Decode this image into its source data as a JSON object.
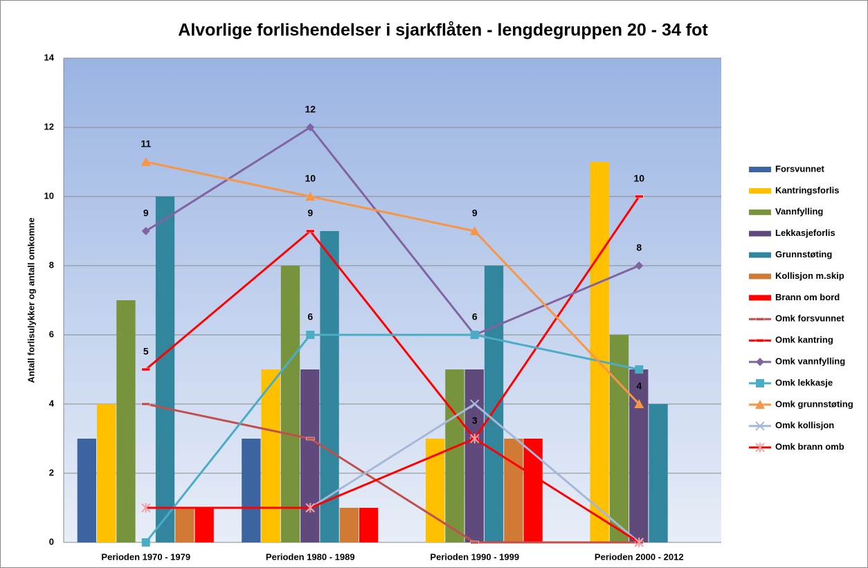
{
  "chart_data": {
    "type": "combo",
    "title": "Alvorlige forlishendelser i sjarkflåten - lengdegruppen 20 - 34 fot",
    "y_label": "Antall forlisulykker og antall omkomne",
    "categories": [
      "Perioden 1970 - 1979",
      "Perioden 1980 - 1989",
      "Perioden 1990 - 1999",
      "Perioden 2000 - 2012"
    ],
    "ylim": [
      0,
      14
    ],
    "yticks": [
      0,
      2,
      4,
      6,
      8,
      10,
      12,
      14
    ],
    "grid": true,
    "legend": "right",
    "series": [
      {
        "name": "Forsvunnet",
        "kind": "bar",
        "color": "#3b64a0",
        "values": [
          3,
          3,
          0,
          0
        ]
      },
      {
        "name": "Kantringsforlis",
        "kind": "bar",
        "color": "#ffc000",
        "values": [
          4,
          5,
          3,
          11
        ]
      },
      {
        "name": "Vannfylling",
        "kind": "bar",
        "color": "#77933c",
        "values": [
          7,
          8,
          5,
          6
        ]
      },
      {
        "name": "Lekkasjeforlis",
        "kind": "bar",
        "color": "#604a7b",
        "values": [
          0,
          5,
          5,
          5
        ]
      },
      {
        "name": "Grunnstøting",
        "kind": "bar",
        "color": "#31859c",
        "values": [
          10,
          9,
          8,
          4
        ]
      },
      {
        "name": "Kollisjon m.skip",
        "kind": "bar",
        "color": "#d07a35",
        "values": [
          1,
          1,
          3,
          0
        ]
      },
      {
        "name": "Brann om bord",
        "kind": "bar",
        "color": "#ff0000",
        "values": [
          1,
          1,
          3,
          0
        ]
      },
      {
        "name": "Omk forsvunnet",
        "kind": "line",
        "marker": "dash",
        "color": "#c0504d",
        "values": [
          4,
          3,
          0,
          0
        ]
      },
      {
        "name": "Omk kantring",
        "kind": "line",
        "marker": "dash",
        "color": "#ff0000",
        "values": [
          5,
          9,
          3,
          10
        ],
        "value_labels": [
          "5",
          "9",
          "3",
          "10"
        ]
      },
      {
        "name": "Omk vannfylling",
        "kind": "line",
        "marker": "diamond",
        "color": "#8064a2",
        "values": [
          9,
          12,
          6,
          8
        ],
        "value_labels": [
          "9",
          "12",
          "6",
          "8"
        ]
      },
      {
        "name": "Omk lekkasje",
        "kind": "line",
        "marker": "square",
        "color": "#4bacc6",
        "values": [
          0,
          6,
          6,
          5
        ],
        "value_labels": [
          null,
          "6",
          null,
          null
        ]
      },
      {
        "name": "Omk grunnstøting",
        "kind": "line",
        "marker": "triangle",
        "color": "#f79646",
        "values": [
          11,
          10,
          9,
          4
        ],
        "value_labels": [
          "11",
          "10",
          "9",
          "4"
        ]
      },
      {
        "name": "Omk kollisjon",
        "kind": "line",
        "marker": "x",
        "color": "#a6b8d8",
        "values": [
          null,
          1,
          4,
          0
        ]
      },
      {
        "name": "Omk brann omb",
        "kind": "line",
        "marker": "star",
        "marker_color": "#f4a0a8",
        "color": "#ff0000",
        "values": [
          1,
          1,
          3,
          0
        ]
      }
    ]
  }
}
